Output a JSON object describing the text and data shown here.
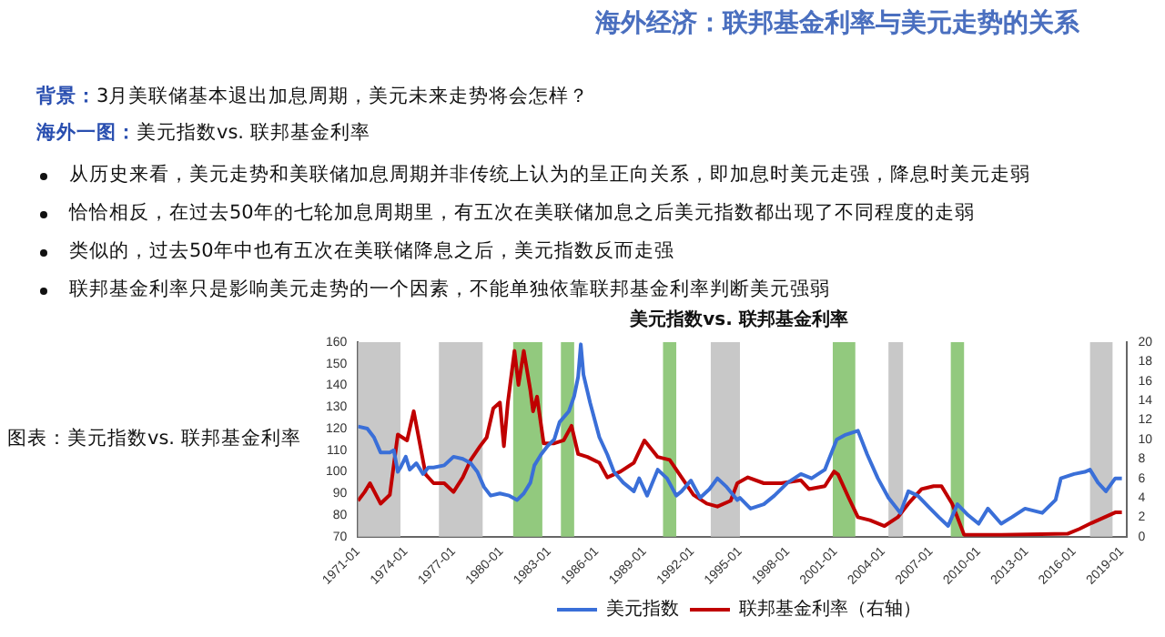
{
  "chart_data": {
    "type": "line",
    "title": "海外经济：联邦基金利率与美元走势的关系",
    "subtitle": "美元指数vs. 联邦基金利率",
    "annotations": [
      "背景：3月美联储基本退出加息周期，美元未来走势将会怎样？",
      "海外一图：美元指数vs. 联邦基金利率",
      "从历史来看，美元走势和美联储加息周期并非传统上认为的呈正向关系，即加息时美元走强，降息时美元走弱",
      "恰恰相反，在过去50年的七轮加息周期里，有五次在美联储加息之后美元指数都出现了不同程度的走弱",
      "类似的，过去50年中也有五次在美联储降息之后，美元指数反而走强",
      "联邦基金利率只是影响美元走势的一个因素，不能单独依靠联邦基金利率判断美元强弱",
      "图表：美元指数vs. 联邦基金利率"
    ],
    "xlim": [
      "1971-01",
      "2019-05"
    ],
    "xticks": [
      "1971-01",
      "1974-01",
      "1977-01",
      "1980-01",
      "1983-01",
      "1986-01",
      "1989-01",
      "1992-01",
      "1995-01",
      "1998-01",
      "2001-01",
      "2004-01",
      "2007-01",
      "2010-01",
      "2013-01",
      "2016-01",
      "2019-01"
    ],
    "ylim": [
      70,
      160
    ],
    "yticks": [
      70,
      80,
      90,
      100,
      110,
      120,
      130,
      140,
      150,
      160
    ],
    "y2lim": [
      0,
      20
    ],
    "y2ticks": [
      0,
      2,
      4,
      6,
      8,
      10,
      12,
      14,
      16,
      18,
      20
    ],
    "grid": false,
    "legend": "bottom",
    "marker": "none",
    "line_style": "solid",
    "bands": [
      {
        "axis": "x",
        "from": "1971-01",
        "to": "1973-09",
        "color": "#c8c8c8"
      },
      {
        "axis": "x",
        "from": "1976-02",
        "to": "1978-11",
        "color": "#c8c8c8"
      },
      {
        "axis": "x",
        "from": "1980-10",
        "to": "1982-08",
        "color": "#92c97e"
      },
      {
        "axis": "x",
        "from": "1983-10",
        "to": "1984-08",
        "color": "#92c97e"
      },
      {
        "axis": "x",
        "from": "1990-03",
        "to": "1991-01",
        "color": "#92c97e"
      },
      {
        "axis": "x",
        "from": "1993-03",
        "to": "1995-01",
        "color": "#c8c8c8"
      },
      {
        "axis": "x",
        "from": "2000-11",
        "to": "2002-04",
        "color": "#92c97e"
      },
      {
        "axis": "x",
        "from": "2004-05",
        "to": "2005-04",
        "color": "#c8c8c8"
      },
      {
        "axis": "x",
        "from": "2008-04",
        "to": "2009-02",
        "color": "#92c97e"
      },
      {
        "axis": "x",
        "from": "2017-01",
        "to": "2018-06",
        "color": "#c8c8c8"
      }
    ],
    "series": [
      {
        "name": "美元指数",
        "color": "#3a6fd8",
        "x": [
          "1971-01",
          "1971-08",
          "1972-01",
          "1972-06",
          "1973-01",
          "1973-04",
          "1973-07",
          "1973-09",
          "1974-01",
          "1974-04",
          "1974-09",
          "1975-02",
          "1975-06",
          "1975-10",
          "1976-06",
          "1977-01",
          "1977-08",
          "1978-02",
          "1978-07",
          "1978-12",
          "1979-05",
          "1979-12",
          "1980-07",
          "1981-01",
          "1981-06",
          "1981-11",
          "1982-02",
          "1982-07",
          "1982-12",
          "1983-05",
          "1983-09",
          "1984-04",
          "1984-08",
          "1984-11",
          "1985-01",
          "1985-03",
          "1985-08",
          "1986-03",
          "1986-09",
          "1987-02",
          "1987-09",
          "1988-05",
          "1988-09",
          "1989-03",
          "1989-11",
          "1990-06",
          "1991-01",
          "1991-05",
          "1991-12",
          "1992-07",
          "1993-02",
          "1993-08",
          "1994-03",
          "1994-11",
          "1995-01",
          "1995-09",
          "1996-07",
          "1997-03",
          "1998-01",
          "1998-11",
          "1999-07",
          "2000-05",
          "2001-02",
          "2001-08",
          "2002-06",
          "2003-01",
          "2003-09",
          "2004-05",
          "2005-02",
          "2005-08",
          "2006-03",
          "2006-11",
          "2007-07",
          "2008-02",
          "2008-09",
          "2009-05",
          "2010-01",
          "2010-08",
          "2011-06",
          "2012-02",
          "2012-12",
          "2014-01",
          "2014-11",
          "2015-03",
          "2016-01",
          "2016-09",
          "2017-01",
          "2017-07",
          "2018-01",
          "2018-08",
          "2019-01"
        ],
        "values": [
          121,
          120,
          116,
          109,
          109,
          110,
          100,
          102,
          107,
          101,
          104,
          99,
          102,
          102,
          103,
          107,
          106,
          104,
          100,
          93,
          89,
          90,
          89,
          87,
          90,
          95,
          103,
          108,
          112,
          115,
          123,
          128,
          135,
          144,
          159,
          145,
          132,
          116,
          108,
          100,
          95,
          91,
          97,
          89,
          101,
          97,
          89,
          91,
          96,
          88,
          92,
          97,
          93,
          87,
          88,
          83,
          85,
          89,
          95,
          99,
          97,
          101,
          115,
          117,
          119,
          108,
          97,
          88,
          81,
          91,
          89,
          84,
          79,
          75,
          85,
          80,
          76,
          83,
          76,
          79,
          83,
          81,
          87,
          97,
          99,
          100,
          101,
          95,
          91,
          97,
          97
        ]
      },
      {
        "name": "联邦基金利率（右轴）",
        "color": "#c00000",
        "axis": "y2",
        "x": [
          "1971-01",
          "1971-06",
          "1971-10",
          "1972-06",
          "1973-01",
          "1973-07",
          "1974-02",
          "1974-07",
          "1974-12",
          "1975-04",
          "1975-10",
          "1976-06",
          "1977-01",
          "1977-08",
          "1978-02",
          "1978-09",
          "1979-02",
          "1979-07",
          "1979-12",
          "1980-03",
          "1980-06",
          "1980-11",
          "1981-02",
          "1981-06",
          "1981-11",
          "1982-01",
          "1982-04",
          "1982-09",
          "1983-05",
          "1983-12",
          "1984-06",
          "1984-11",
          "1985-06",
          "1986-03",
          "1986-09",
          "1987-07",
          "1988-05",
          "1989-01",
          "1989-11",
          "1990-08",
          "1991-05",
          "1992-02",
          "1992-12",
          "1993-08",
          "1994-06",
          "1994-11",
          "1995-07",
          "1996-07",
          "1997-08",
          "1998-11",
          "1999-05",
          "2000-05",
          "2000-12",
          "2001-03",
          "2001-11",
          "2002-06",
          "2003-03",
          "2004-02",
          "2004-12",
          "2005-08",
          "2006-06",
          "2007-03",
          "2007-09",
          "2008-05",
          "2008-09",
          "2009-02",
          "2011-06",
          "2015-08",
          "2016-05",
          "2017-02",
          "2017-12",
          "2018-08",
          "2019-01"
        ],
        "values": [
          3.7,
          4.6,
          5.5,
          3.4,
          4.3,
          10.5,
          9.9,
          12.9,
          9.3,
          6.4,
          5.5,
          5.5,
          4.6,
          6.1,
          7.9,
          9.3,
          10.2,
          13.2,
          13.8,
          9.3,
          13.8,
          19.1,
          15.6,
          19.1,
          15.0,
          12.9,
          14.4,
          9.6,
          9.6,
          9.9,
          11.4,
          8.5,
          8.2,
          7.6,
          6.1,
          6.7,
          7.6,
          9.9,
          8.2,
          7.9,
          6.1,
          4.3,
          3.4,
          3.1,
          3.7,
          5.5,
          6.1,
          5.5,
          5.5,
          5.8,
          4.9,
          5.2,
          6.7,
          6.4,
          4.0,
          2.0,
          1.7,
          1.1,
          2.0,
          3.4,
          4.9,
          5.2,
          5.2,
          3.4,
          2.0,
          0.2,
          0.2,
          0.3,
          0.8,
          1.4,
          2.0,
          2.5,
          2.5
        ]
      }
    ]
  }
}
